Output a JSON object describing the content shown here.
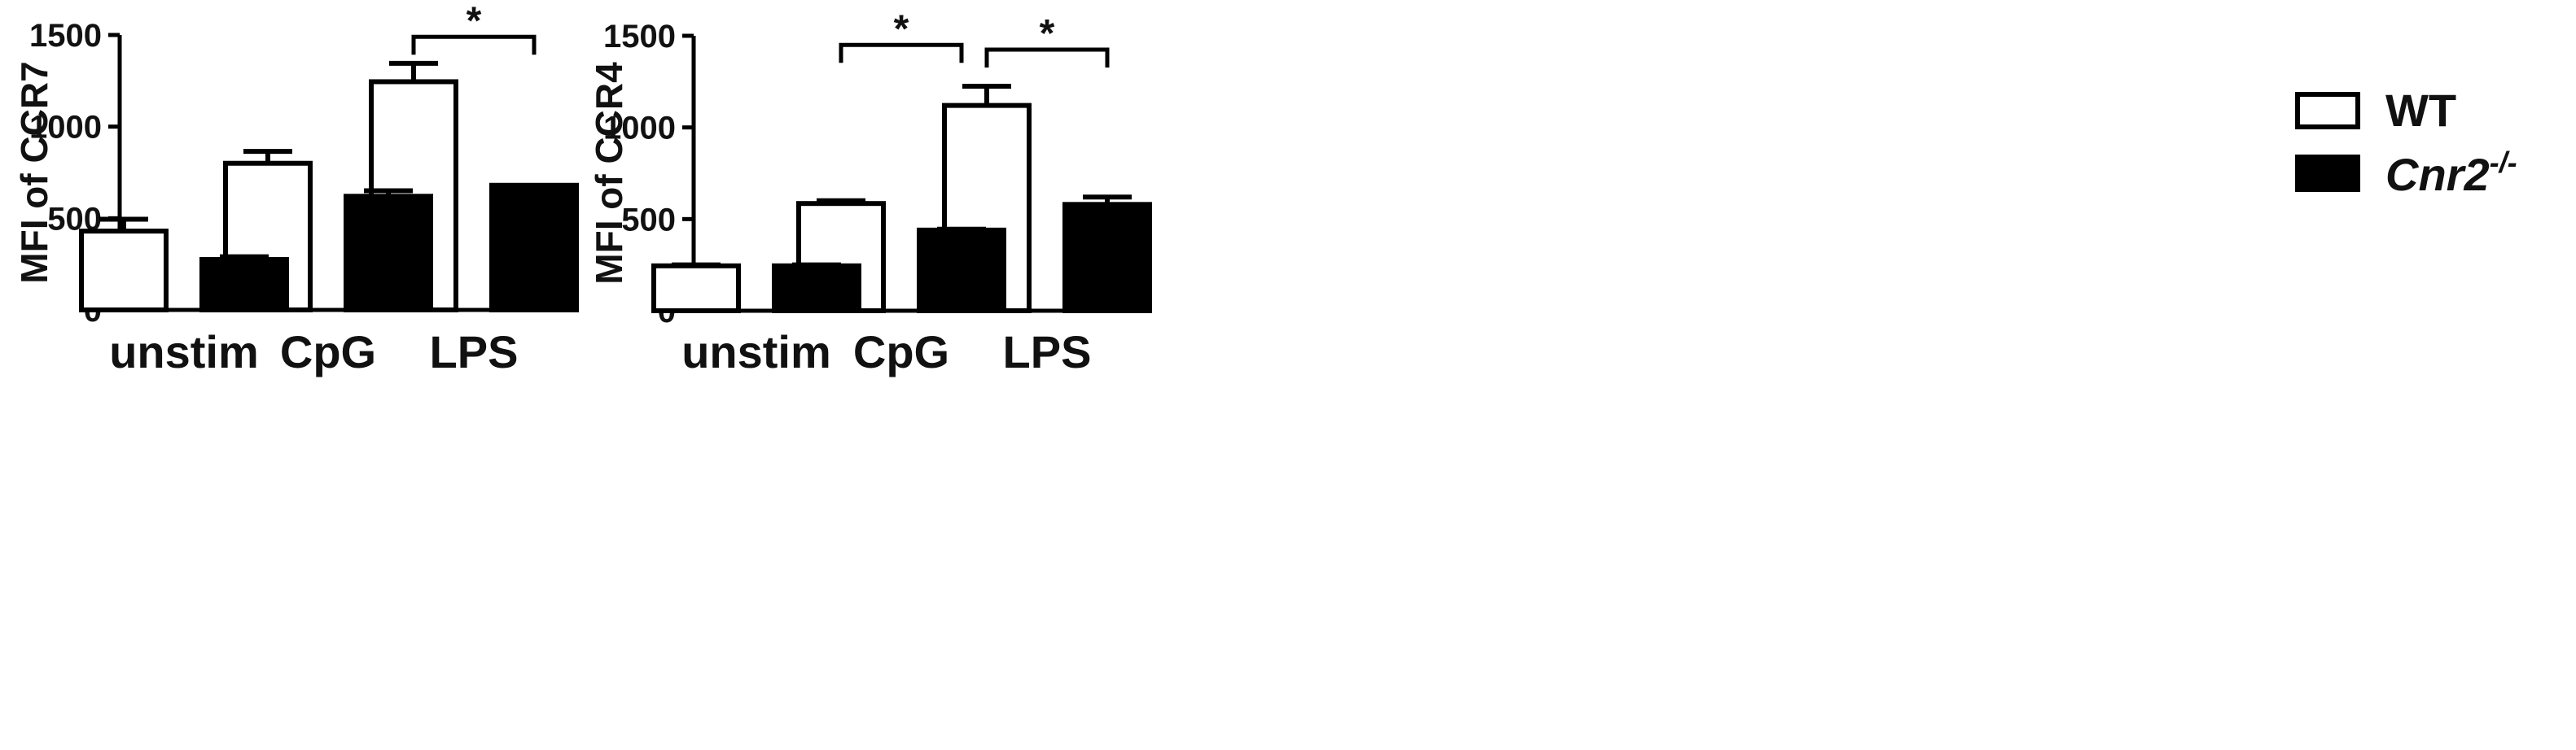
{
  "chart_data": [
    {
      "type": "bar",
      "title": "",
      "xlabel": "",
      "ylabel": "MFI of CCR7",
      "categories": [
        "unstim",
        "CpG",
        "LPS"
      ],
      "ylim": [
        0,
        1500
      ],
      "yticks": [
        0,
        500,
        1000,
        1500
      ],
      "series": [
        {
          "name": "WT",
          "values": [
            430,
            800,
            1245
          ],
          "errors": [
            65,
            65,
            100
          ]
        },
        {
          "name": "Cnr2-/-",
          "values": [
            275,
            620,
            680
          ],
          "errors": [
            15,
            30,
            0
          ]
        }
      ],
      "significance": [
        {
          "category": "LPS",
          "label": "*"
        }
      ]
    },
    {
      "type": "bar",
      "title": "",
      "xlabel": "",
      "ylabel": "MFI of CCR4",
      "categories": [
        "unstim",
        "CpG",
        "LPS"
      ],
      "ylim": [
        0,
        1500
      ],
      "yticks": [
        0,
        500,
        1000,
        1500
      ],
      "series": [
        {
          "name": "WT",
          "values": [
            245,
            585,
            1120
          ],
          "errors": [
            5,
            15,
            105
          ]
        },
        {
          "name": "Cnr2-/-",
          "values": [
            245,
            440,
            580
          ],
          "errors": [
            5,
            5,
            40
          ]
        }
      ],
      "significance": [
        {
          "category": "CpG",
          "label": "*"
        },
        {
          "category": "LPS",
          "label": "*"
        }
      ]
    }
  ],
  "legend": {
    "placement": "top-right",
    "items": [
      {
        "label": "WT",
        "fill": "#ffffff",
        "stroke": "#000000"
      },
      {
        "label_main": "Cnr2",
        "label_sup": "-/-",
        "fill": "#000000",
        "stroke": "#000000"
      }
    ]
  },
  "colors": {
    "axis": "#000000",
    "wt_fill": "#ffffff",
    "ko_fill": "#000000"
  }
}
